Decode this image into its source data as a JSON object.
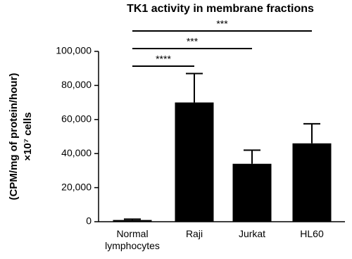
{
  "chart_data": {
    "type": "bar",
    "title": "TK1 activity in membrane fractions",
    "ylabel": "(CPM/mg of protein/hour)",
    "ylabel2": "×10⁷ cells",
    "categories": [
      "Normal lymphocytes",
      "Raji",
      "Jurkat",
      "HL60"
    ],
    "values": [
      1000,
      70000,
      34000,
      46000
    ],
    "errors": [
      500,
      17000,
      8000,
      11500
    ],
    "color": "#000000",
    "ylim": [
      0,
      100000
    ],
    "yticks": [
      0,
      {
        "value": 20000,
        "label": "20,000"
      },
      {
        "value": 40000,
        "label": "40,000"
      },
      {
        "value": 60000,
        "label": "60,000"
      },
      {
        "value": 80000,
        "label": "80,000"
      },
      {
        "value": 100000,
        "label": "100,000"
      }
    ],
    "annotations": [
      {
        "text": "****",
        "from": 0,
        "to": 1
      },
      {
        "text": "***",
        "from": 0,
        "to": 2
      },
      {
        "text": "***",
        "from": 0,
        "to": 3
      }
    ]
  }
}
